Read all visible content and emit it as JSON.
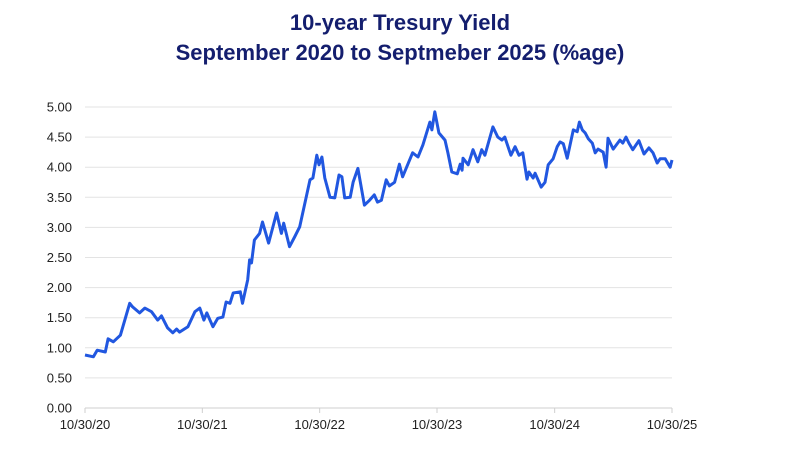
{
  "chart_data": {
    "type": "line",
    "title": "10-year Tresury Yield",
    "subtitle": "September 2020 to Septmeber 2025 (%age)",
    "xlabel": "",
    "ylabel": "",
    "ylim": [
      0,
      5
    ],
    "xlim": [
      "2020-10-30",
      "2025-10-30"
    ],
    "grid": true,
    "line_color": "#2157e0",
    "title_color": "#141e6e",
    "y_ticks": [
      "0.00",
      "0.50",
      "1.00",
      "1.50",
      "2.00",
      "2.50",
      "3.00",
      "3.50",
      "4.00",
      "4.50",
      "5.00"
    ],
    "x_ticks": [
      {
        "date": "2020-10-30",
        "label": "10/30/20"
      },
      {
        "date": "2021-10-30",
        "label": "10/30/21"
      },
      {
        "date": "2022-10-30",
        "label": "10/30/22"
      },
      {
        "date": "2023-10-30",
        "label": "10/30/23"
      },
      {
        "date": "2024-10-30",
        "label": "10/30/24"
      },
      {
        "date": "2025-10-30",
        "label": "10/30/25"
      }
    ],
    "series": [
      {
        "x": [
          "2020-10-30",
          "2020-11-25",
          "2020-12-07",
          "2021-01-01",
          "2021-01-10",
          "2021-01-26",
          "2021-02-17",
          "2021-03-18",
          "2021-03-27",
          "2021-04-18",
          "2021-05-04",
          "2021-05-25",
          "2021-06-13",
          "2021-06-25",
          "2021-07-14",
          "2021-07-30",
          "2021-08-11",
          "2021-08-20",
          "2021-09-15",
          "2021-10-07",
          "2021-10-22",
          "2021-11-04",
          "2021-11-13",
          "2021-12-02",
          "2021-12-17",
          "2022-01-02",
          "2022-01-12",
          "2022-01-24",
          "2022-02-03",
          "2022-02-25",
          "2022-03-04",
          "2022-03-20",
          "2022-03-26",
          "2022-04-01",
          "2022-04-10",
          "2022-04-26",
          "2022-05-05",
          "2022-05-24",
          "2022-06-18",
          "2022-07-03",
          "2022-07-10",
          "2022-07-28",
          "2022-08-13",
          "2022-08-29",
          "2022-09-30",
          "2022-10-09",
          "2022-10-21",
          "2022-10-28",
          "2022-11-06",
          "2022-11-15",
          "2022-12-01",
          "2022-12-16",
          "2022-12-29",
          "2023-01-07",
          "2023-01-16",
          "2023-02-02",
          "2023-02-11",
          "2023-02-26",
          "2023-03-18",
          "2023-04-03",
          "2023-04-18",
          "2023-04-28",
          "2023-05-10",
          "2023-05-25",
          "2023-06-04",
          "2023-06-20",
          "2023-07-05",
          "2023-07-15",
          "2023-08-15",
          "2023-09-01",
          "2023-09-16",
          "2023-10-08",
          "2023-10-14",
          "2023-10-23",
          "2023-11-05",
          "2023-11-24",
          "2023-12-03",
          "2023-12-15",
          "2024-01-01",
          "2024-01-10",
          "2024-01-16",
          "2024-01-19",
          "2024-02-04",
          "2024-02-19",
          "2024-03-05",
          "2024-03-17",
          "2024-03-27",
          "2024-04-21",
          "2024-05-06",
          "2024-05-19",
          "2024-05-28",
          "2024-06-16",
          "2024-06-29",
          "2024-07-11",
          "2024-07-23",
          "2024-08-05",
          "2024-08-11",
          "2024-08-24",
          "2024-08-30",
          "2024-09-18",
          "2024-09-30",
          "2024-10-10",
          "2024-10-25",
          "2024-11-07",
          "2024-11-16",
          "2024-11-26",
          "2024-12-08",
          "2024-12-27",
          "2025-01-08",
          "2025-01-15",
          "2025-01-24",
          "2025-02-02",
          "2025-02-12",
          "2025-02-24",
          "2025-03-05",
          "2025-03-14",
          "2025-03-30",
          "2025-04-08",
          "2025-04-14",
          "2025-04-30",
          "2025-05-21",
          "2025-05-30",
          "2025-06-09",
          "2025-06-18",
          "2025-06-30",
          "2025-07-19",
          "2025-08-04",
          "2025-08-19",
          "2025-09-01",
          "2025-09-14",
          "2025-09-23",
          "2025-10-09",
          "2025-10-24",
          "2025-10-30"
        ],
        "y": [
          0.88,
          0.85,
          0.96,
          0.93,
          1.15,
          1.1,
          1.21,
          1.74,
          1.68,
          1.58,
          1.66,
          1.6,
          1.46,
          1.53,
          1.33,
          1.25,
          1.31,
          1.26,
          1.35,
          1.6,
          1.66,
          1.46,
          1.58,
          1.35,
          1.49,
          1.51,
          1.76,
          1.74,
          1.91,
          1.93,
          1.74,
          2.13,
          2.46,
          2.41,
          2.79,
          2.9,
          3.09,
          2.74,
          3.24,
          2.9,
          3.07,
          2.68,
          2.84,
          3.01,
          3.79,
          3.82,
          4.2,
          4.04,
          4.17,
          3.82,
          3.5,
          3.49,
          3.87,
          3.84,
          3.49,
          3.5,
          3.75,
          3.98,
          3.37,
          3.45,
          3.54,
          3.42,
          3.45,
          3.79,
          3.69,
          3.75,
          4.05,
          3.84,
          4.24,
          4.17,
          4.37,
          4.75,
          4.62,
          4.92,
          4.57,
          4.45,
          4.24,
          3.92,
          3.89,
          4.05,
          3.95,
          4.15,
          4.04,
          4.29,
          4.09,
          4.29,
          4.2,
          4.67,
          4.5,
          4.45,
          4.5,
          4.2,
          4.34,
          4.2,
          4.24,
          3.8,
          3.92,
          3.82,
          3.9,
          3.67,
          3.75,
          4.04,
          4.14,
          4.34,
          4.42,
          4.39,
          4.15,
          4.62,
          4.59,
          4.75,
          4.62,
          4.57,
          4.47,
          4.4,
          4.24,
          4.3,
          4.25,
          4.0,
          4.48,
          4.3,
          4.45,
          4.4,
          4.5,
          4.4,
          4.29,
          4.44,
          4.22,
          4.32,
          4.24,
          4.07,
          4.14,
          4.14,
          4.0,
          4.12
        ]
      }
    ]
  }
}
